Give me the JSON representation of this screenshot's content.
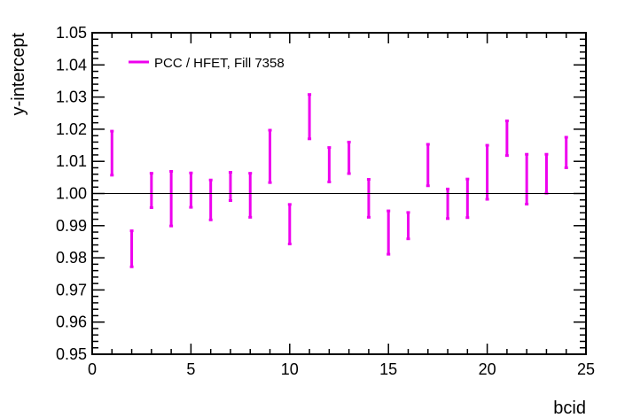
{
  "chart_data": {
    "type": "scatter",
    "title": "",
    "xlabel": "bcid",
    "ylabel": "y-intercept",
    "xlim": [
      0,
      25
    ],
    "ylim": [
      0.95,
      1.05
    ],
    "x_ticks": [
      0,
      5,
      10,
      15,
      20,
      25
    ],
    "y_ticks": [
      0.95,
      0.96,
      0.97,
      0.98,
      0.99,
      1.0,
      1.01,
      1.02,
      1.03,
      1.04,
      1.05
    ],
    "x_tick_labels": [
      "0",
      "5",
      "10",
      "15",
      "20",
      "25"
    ],
    "y_tick_labels": [
      "0.95",
      "0.96",
      "0.97",
      "0.98",
      "0.99",
      "1.00",
      "1.01",
      "1.02",
      "1.03",
      "1.04",
      "1.05"
    ],
    "reference_line": 1.0,
    "grid": false,
    "legend_position": "top-left",
    "series": [
      {
        "name": "PCC / HFET,  Fill 7358",
        "color": "#ee00ee",
        "x": [
          1,
          2,
          3,
          4,
          5,
          6,
          7,
          8,
          9,
          10,
          11,
          12,
          13,
          14,
          15,
          16,
          17,
          18,
          19,
          20,
          21,
          22,
          23,
          24
        ],
        "y_low": [
          1.0057,
          0.9772,
          0.9956,
          0.9899,
          0.9957,
          0.9918,
          0.9978,
          0.9926,
          1.0034,
          0.9843,
          1.017,
          1.0036,
          1.0062,
          0.9926,
          0.9811,
          0.9859,
          1.0024,
          0.9922,
          0.9925,
          0.9982,
          1.0118,
          0.9967,
          1.0001,
          1.008
        ],
        "y_high": [
          1.0194,
          0.9884,
          1.0063,
          1.0069,
          1.0064,
          1.0042,
          1.0066,
          1.0063,
          1.0197,
          0.9966,
          1.0308,
          1.0143,
          1.016,
          1.0044,
          0.9946,
          0.9941,
          1.0153,
          1.0014,
          1.0045,
          1.015,
          1.0226,
          1.0122,
          1.0122,
          1.0175
        ]
      }
    ]
  }
}
